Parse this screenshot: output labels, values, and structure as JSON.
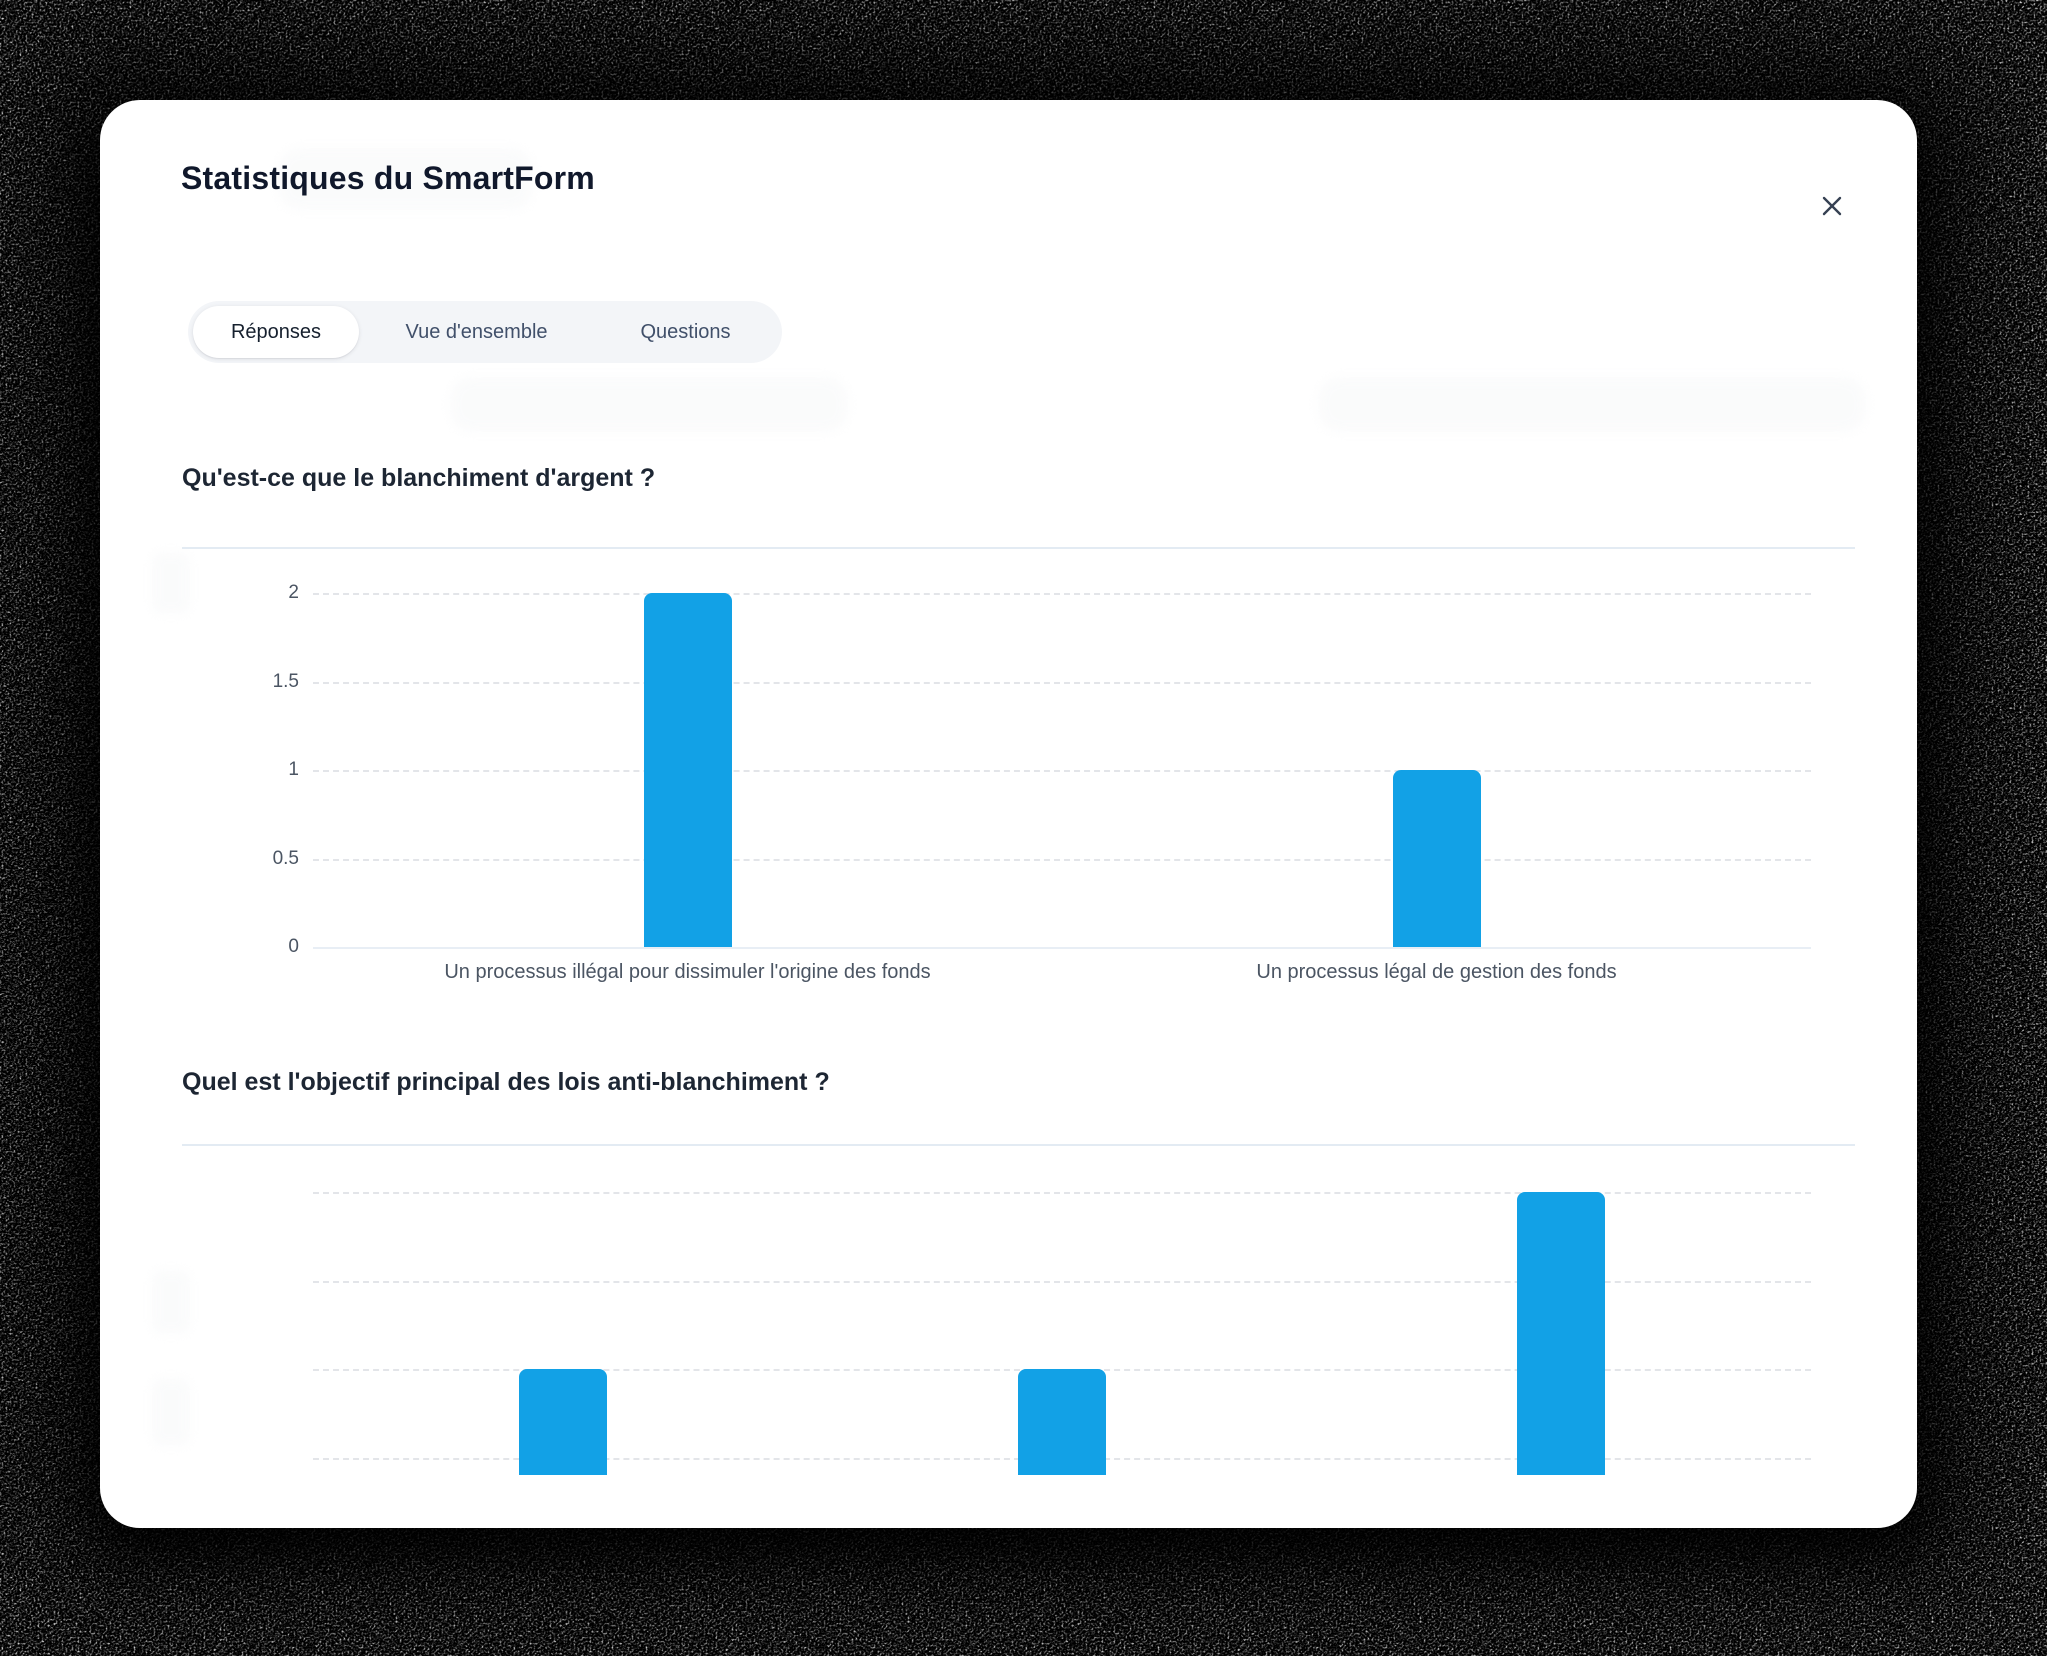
{
  "modal": {
    "title": "Statistiques du SmartForm"
  },
  "tabs": [
    {
      "label": "Réponses",
      "active": true
    },
    {
      "label": "Vue d'ensemble",
      "active": false
    },
    {
      "label": "Questions",
      "active": false
    }
  ],
  "colors": {
    "bar_accent": "#12a1e6",
    "tick_text": "#4b5563",
    "question_text": "#1d2633"
  },
  "chart_data": [
    {
      "type": "bar",
      "title": "Qu'est-ce que le blanchiment d'argent ?",
      "categories": [
        "Un processus illégal pour dissimuler l'origine des fonds",
        "Un processus légal de gestion des fonds"
      ],
      "values": [
        2,
        1
      ],
      "yticks": [
        0,
        0.5,
        1,
        1.5,
        2
      ],
      "ylim": [
        0,
        2
      ],
      "xlabel": "",
      "ylabel": "",
      "grid": "dashed horizontal",
      "legend": "none",
      "bar_color": "#12a1e6",
      "x_labels_visible": true,
      "clipped_at_bottom": false
    },
    {
      "type": "bar",
      "title": "Quel est l'objectif principal des lois anti-blanchiment ?",
      "categories": [
        "",
        "",
        ""
      ],
      "values": [
        1,
        1,
        2
      ],
      "yticks": [
        0.5,
        1,
        1.5,
        2
      ],
      "ylim": [
        0,
        2
      ],
      "xlabel": "",
      "ylabel": "",
      "grid": "dashed horizontal",
      "legend": "none",
      "bar_color": "#12a1e6",
      "x_labels_visible": false,
      "clipped_at_bottom": true
    }
  ]
}
